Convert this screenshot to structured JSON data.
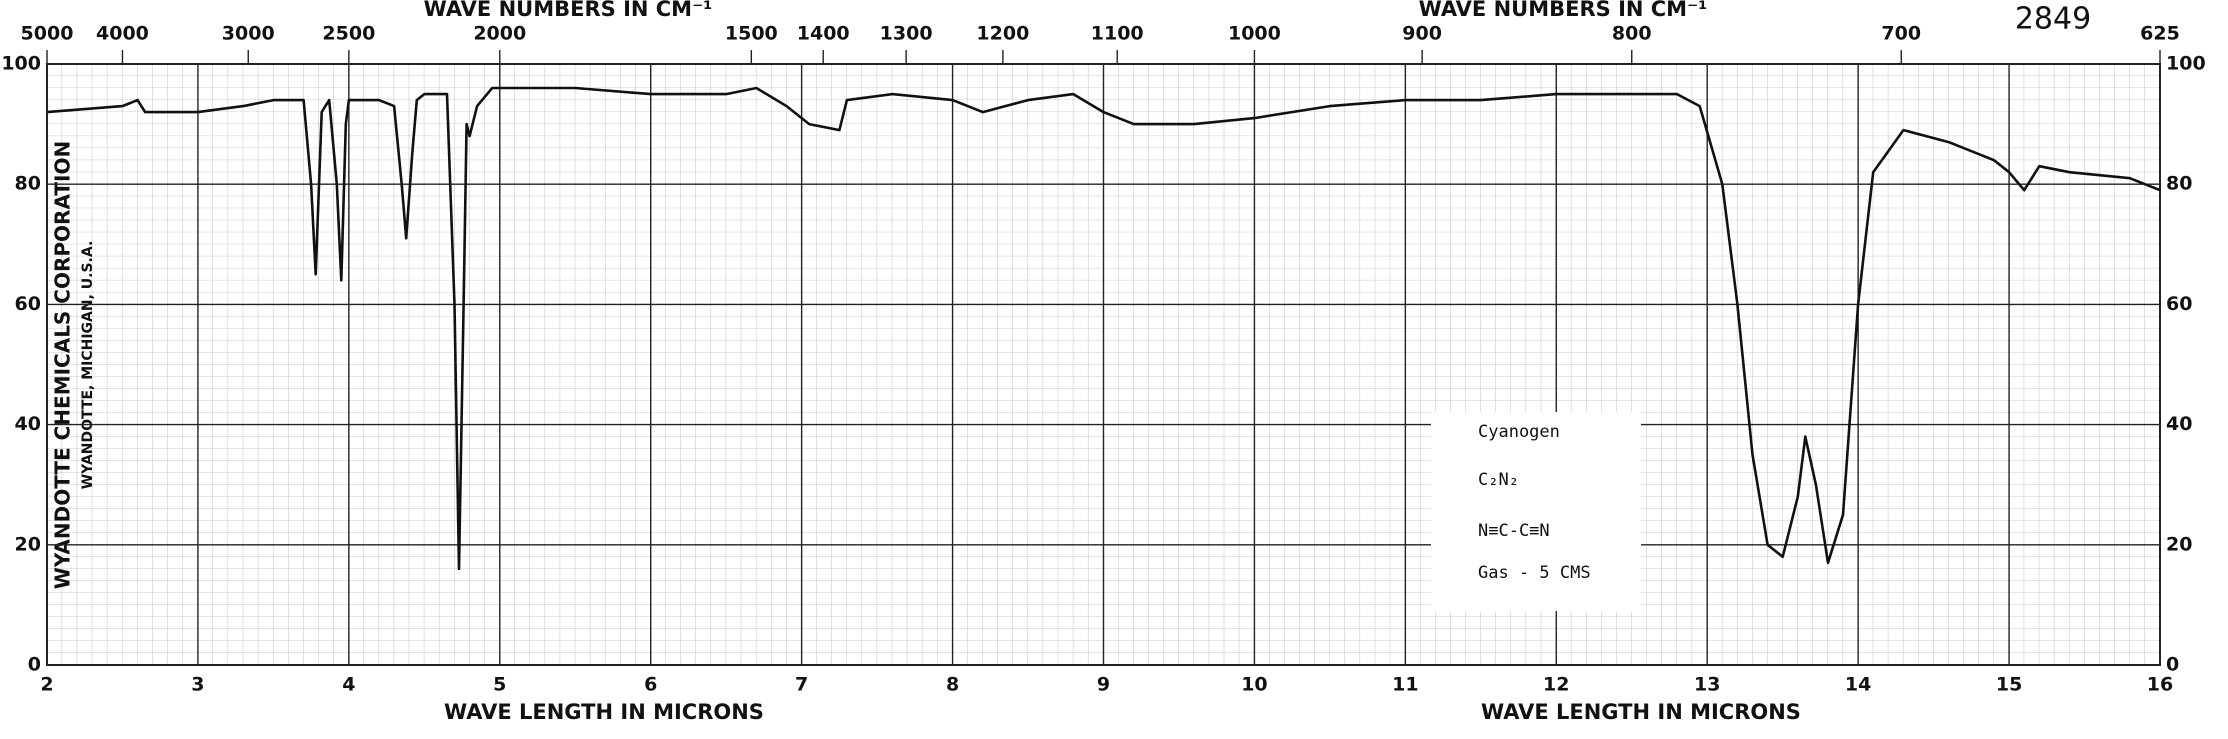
{
  "chart_data": {
    "type": "line",
    "x_label": "WAVE LENGTH IN MICRONS",
    "x2_label": "WAVE NUMBERS IN CM⁻¹",
    "chart_number": "2849",
    "publisher": [
      "WYANDOTTE CHEMICALS CORPORATION",
      "WYANDOTTE, MICHIGAN, U.S.A."
    ],
    "annotations": [
      "Cyanogen",
      "C₂N₂",
      "N≡C-C≡N",
      "Gas - 5 CMS"
    ],
    "color": "#111111",
    "grid": true,
    "xlim": [
      2,
      16
    ],
    "xticks": [
      2,
      3,
      4,
      5,
      6,
      7,
      8,
      9,
      10,
      11,
      12,
      13,
      14,
      15,
      16
    ],
    "x2ticks": [
      5000,
      4000,
      3000,
      2500,
      2000,
      1500,
      1400,
      1300,
      1200,
      1100,
      1000,
      900,
      800,
      700,
      625
    ],
    "ylim": [
      0,
      100
    ],
    "yticks": [
      0,
      20,
      40,
      60,
      80,
      100
    ],
    "x": [
      2.0,
      2.5,
      2.6,
      2.65,
      3.0,
      3.3,
      3.5,
      3.7,
      3.75,
      3.78,
      3.82,
      3.87,
      3.92,
      3.95,
      3.98,
      4.0,
      4.2,
      4.3,
      4.35,
      4.38,
      4.42,
      4.45,
      4.5,
      4.65,
      4.7,
      4.73,
      4.76,
      4.78,
      4.8,
      4.85,
      4.95,
      5.5,
      6.0,
      6.5,
      6.7,
      6.9,
      7.05,
      7.25,
      7.3,
      7.6,
      8.0,
      8.2,
      8.5,
      8.8,
      9.0,
      9.2,
      9.6,
      10.0,
      10.5,
      11.0,
      11.5,
      12.0,
      12.5,
      12.8,
      12.95,
      13.1,
      13.2,
      13.3,
      13.4,
      13.5,
      13.6,
      13.65,
      13.72,
      13.8,
      13.9,
      14.0,
      14.1,
      14.3,
      14.6,
      14.9,
      15.0,
      15.1,
      15.2,
      15.4,
      15.8,
      16.0
    ],
    "values": [
      92,
      93,
      94,
      92,
      92,
      93,
      94,
      94,
      80,
      65,
      92,
      94,
      80,
      64,
      90,
      94,
      94,
      93,
      80,
      71,
      85,
      94,
      95,
      95,
      60,
      16,
      60,
      90,
      88,
      93,
      96,
      96,
      95,
      95,
      96,
      93,
      90,
      89,
      94,
      95,
      94,
      92,
      94,
      95,
      92,
      90,
      90,
      91,
      93,
      94,
      94,
      95,
      95,
      95,
      93,
      80,
      60,
      35,
      20,
      18,
      28,
      38,
      30,
      17,
      25,
      60,
      82,
      89,
      87,
      84,
      82,
      79,
      83,
      82,
      81,
      79
    ]
  }
}
